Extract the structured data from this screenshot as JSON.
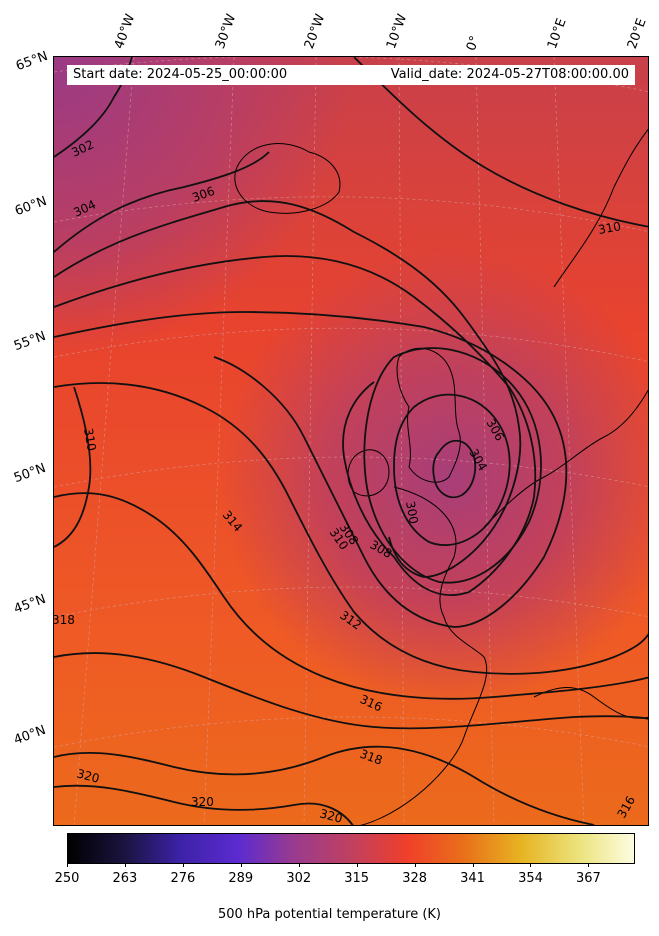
{
  "header": {
    "start_date": "Start date: 2024-05-25_00:00:00",
    "valid_date": "Valid_date: 2024-05-27T08:00:00.00"
  },
  "longitude_labels": [
    "40°W",
    "30°W",
    "20°W",
    "10°W",
    "0°",
    "10°E",
    "20°E"
  ],
  "latitude_labels": [
    "65°N",
    "60°N",
    "55°N",
    "50°N",
    "45°N",
    "40°N"
  ],
  "contour_labels": [
    "302",
    "304",
    "306",
    "308",
    "308",
    "310",
    "310",
    "310",
    "312",
    "314",
    "316",
    "316",
    "318",
    "318",
    "320",
    "320",
    "320",
    "300",
    "304",
    "306"
  ],
  "colorbar": {
    "title": "500 hPa potential temperature (K)",
    "ticks": [
      "250",
      "263",
      "276",
      "289",
      "302",
      "315",
      "328",
      "341",
      "354",
      "367"
    ],
    "range": [
      250,
      377
    ],
    "colors": [
      "#000000",
      "#1a1440",
      "#3d22a8",
      "#5b2bd0",
      "#9a3b8e",
      "#c04060",
      "#f0402a",
      "#e9701a",
      "#e7b322",
      "#ebe27a",
      "#fdfde0"
    ]
  }
}
